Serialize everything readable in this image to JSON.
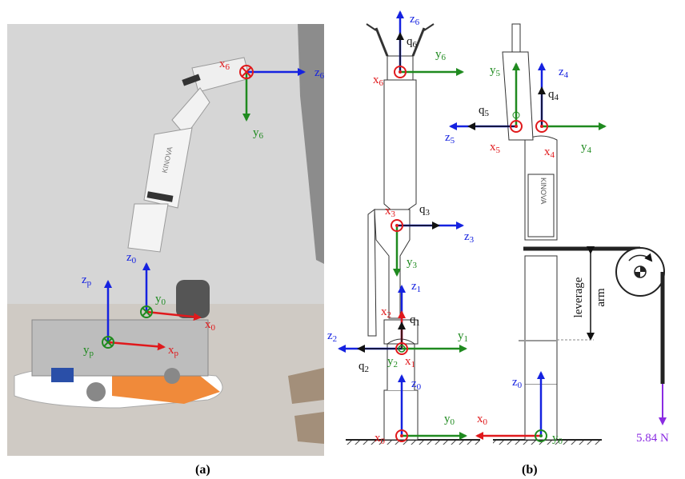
{
  "captions": {
    "a": "(a)",
    "b": "(b)"
  },
  "colors": {
    "x": "#e0191c",
    "y": "#1f8a1f",
    "z": "#1522e0",
    "q": "#111111",
    "force": "#8a2be2",
    "link": "#222222"
  },
  "panel_a": {
    "frame6": {
      "x": "x",
      "x_sub": "6",
      "y": "y",
      "y_sub": "6",
      "z": "z",
      "z_sub": "6"
    },
    "frame0": {
      "x": "x",
      "x_sub": "0",
      "y": "y",
      "y_sub": "0",
      "z": "z",
      "z_sub": "0"
    },
    "framep": {
      "x": "x",
      "x_sub": "p",
      "y": "y",
      "y_sub": "p",
      "z": "z",
      "z_sub": "p"
    },
    "robot_brand": "KINOVA"
  },
  "panel_b_left": {
    "f6": {
      "z": "z",
      "z_sub": "6",
      "q": "q",
      "q_sub": "6",
      "y": "y",
      "y_sub": "6",
      "x": "x",
      "x_sub": "6"
    },
    "f3": {
      "x": "x",
      "x_sub": "3",
      "q": "q",
      "q_sub": "3",
      "z": "z",
      "z_sub": "3",
      "y": "y",
      "y_sub": "3"
    },
    "f1": {
      "z": "z",
      "z_sub": "1",
      "x2": "x",
      "x2_sub": "2",
      "q1": "q",
      "q1_sub": "1",
      "z2": "z",
      "z2_sub": "2",
      "y1": "y",
      "y1_sub": "1",
      "q2": "q",
      "q2_sub": "2",
      "y2": "y",
      "y2_sub": "2",
      "x1": "x",
      "x1_sub": "1"
    },
    "f0": {
      "z": "z",
      "z_sub": "0",
      "y": "y",
      "y_sub": "0",
      "x": "x",
      "x_sub": "0"
    }
  },
  "panel_b_right": {
    "f5": {
      "y": "y",
      "y_sub": "5",
      "q": "q",
      "q_sub": "5",
      "z": "z",
      "z_sub": "5",
      "x": "x",
      "x_sub": "5"
    },
    "f4": {
      "z": "z",
      "z_sub": "4",
      "q": "q",
      "q_sub": "4",
      "y": "y",
      "y_sub": "4",
      "x": "x",
      "x_sub": "4"
    },
    "f0": {
      "z": "z",
      "z_sub": "0",
      "x": "x",
      "x_sub": "0",
      "y": "y",
      "y_sub": "0"
    },
    "leverage1": "leverage",
    "leverage2": "arm",
    "force": "5.84 N",
    "robot_brand": "KINOVA"
  }
}
